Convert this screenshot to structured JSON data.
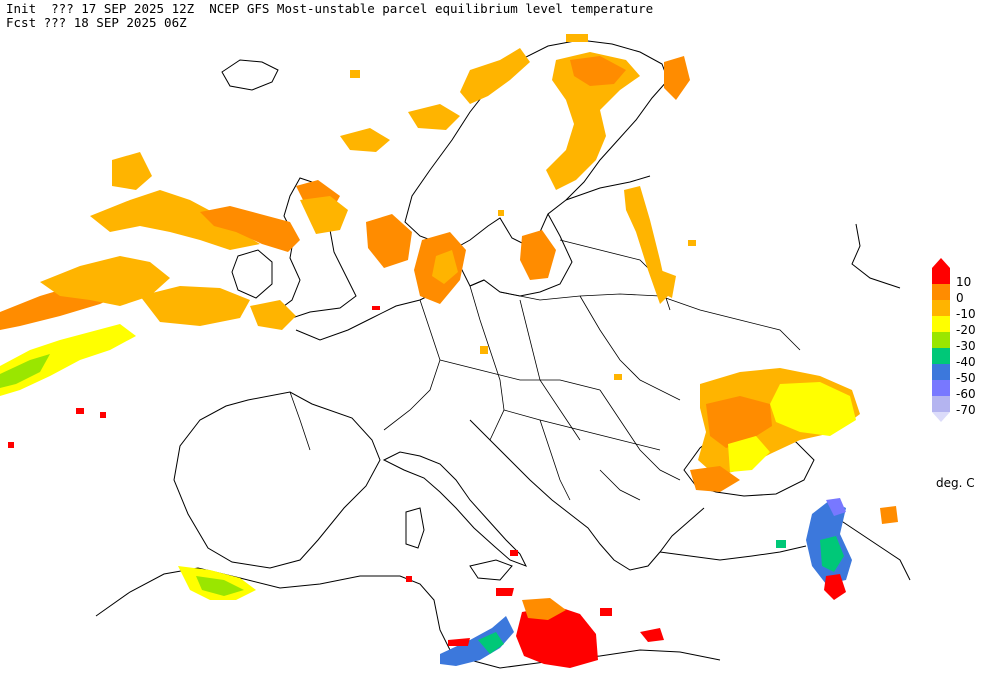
{
  "header": {
    "init_line": "Init  ??? 17 SEP 2025 12Z  NCEP GFS Most-unstable parcel equilibrium level temperature",
    "fcst_line": "Fcst ??? 18 SEP 2025 06Z"
  },
  "colorbar": {
    "units": "deg. C",
    "levels": [
      {
        "label": "10",
        "color": "#ff0000"
      },
      {
        "label": "0",
        "color": "#ff8c00"
      },
      {
        "label": "-10",
        "color": "#ffb400"
      },
      {
        "label": "-20",
        "color": "#ffff00"
      },
      {
        "label": "-30",
        "color": "#9ae600"
      },
      {
        "label": "-40",
        "color": "#00c878"
      },
      {
        "label": "-50",
        "color": "#3c78dc"
      },
      {
        "label": "-60",
        "color": "#7878ff"
      },
      {
        "label": "-70",
        "color": "#b4b4f0"
      }
    ],
    "below_color": "#dcdcfa"
  }
}
